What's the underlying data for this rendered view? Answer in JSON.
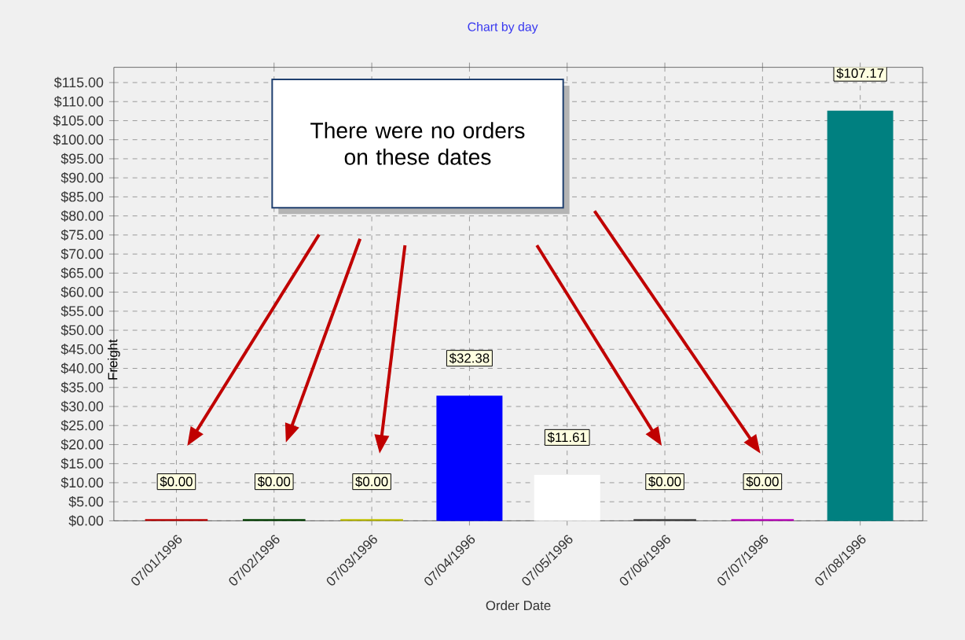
{
  "chart_data": {
    "type": "bar",
    "title": "Chart by day",
    "xlabel": "Order Date",
    "ylabel": "Freight",
    "annotations": [
      "There were no orders on these dates"
    ],
    "categories": [
      "07/01/1996",
      "07/02/1996",
      "07/03/1996",
      "07/04/1996",
      "07/05/1996",
      "07/06/1996",
      "07/07/1996",
      "07/08/1996"
    ],
    "values": [
      0,
      0,
      0,
      32.38,
      11.61,
      0,
      0,
      107.17
    ],
    "colors": [
      "#c00000",
      "#004000",
      "#c0c000",
      "#0000ff",
      "#ffffff",
      "#404040",
      "#c000c0",
      "#008080"
    ],
    "value_labels": [
      "$0.00",
      "$0.00",
      "$0.00",
      "$32.38",
      "$11.61",
      "$0.00",
      "$0.00",
      "$107.17"
    ],
    "ylim": [
      0,
      119
    ],
    "yticks": [
      {
        "value": 0,
        "label": "$0.00"
      },
      {
        "value": 5,
        "label": "$5.00"
      },
      {
        "value": 10,
        "label": "$10.00"
      },
      {
        "value": 15,
        "label": "$15.00"
      },
      {
        "value": 20,
        "label": "$20.00"
      },
      {
        "value": 25,
        "label": "$25.00"
      },
      {
        "value": 30,
        "label": "$30.00"
      },
      {
        "value": 35,
        "label": "$35.00"
      },
      {
        "value": 40,
        "label": "$40.00"
      },
      {
        "value": 45,
        "label": "$45.00"
      },
      {
        "value": 50,
        "label": "$50.00"
      },
      {
        "value": 55,
        "label": "$55.00"
      },
      {
        "value": 60,
        "label": "$60.00"
      },
      {
        "value": 65,
        "label": "$65.00"
      },
      {
        "value": 70,
        "label": "$70.00"
      },
      {
        "value": 75,
        "label": "$75.00"
      },
      {
        "value": 80,
        "label": "$80.00"
      },
      {
        "value": 85,
        "label": "$85.00"
      },
      {
        "value": 90,
        "label": "$90.00"
      },
      {
        "value": 95,
        "label": "$95.00"
      },
      {
        "value": 100,
        "label": "$100.00"
      },
      {
        "value": 105,
        "label": "$105.00"
      },
      {
        "value": 110,
        "label": "$110.00"
      },
      {
        "value": 115,
        "label": "$115.00"
      }
    ],
    "grid": true
  }
}
